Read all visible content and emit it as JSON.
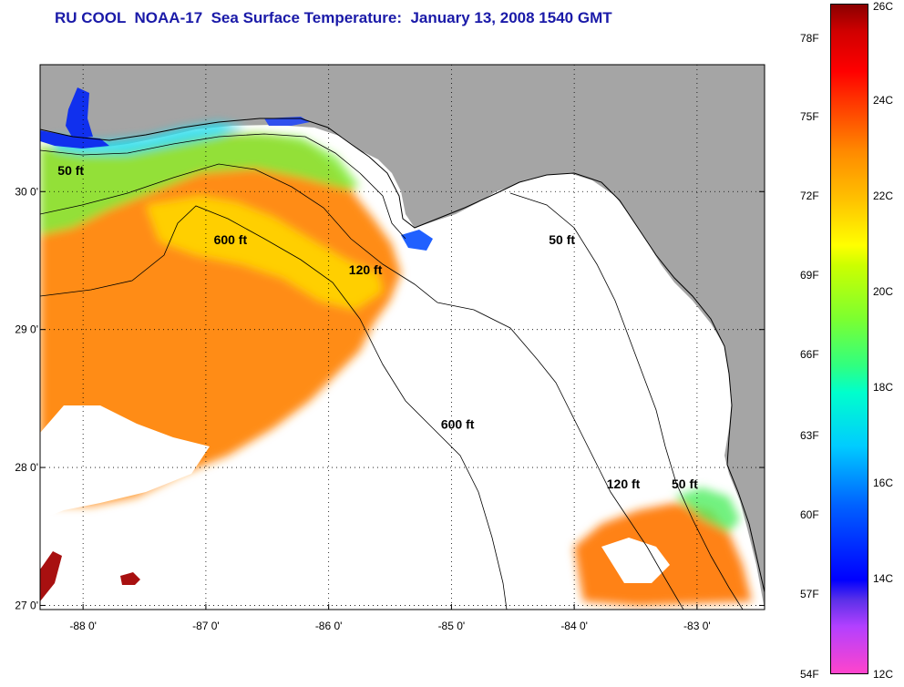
{
  "title": "RU COOL  NOAA-17  Sea Surface Temperature:  January 13, 2008 1540 GMT",
  "map": {
    "lon_range": [
      -88.35,
      -82.45
    ],
    "lat_range": [
      26.97,
      30.92
    ],
    "grid": "dotted",
    "lon_ticks": [
      {
        "value": -88,
        "label": "-88 0'"
      },
      {
        "value": -87,
        "label": "-87 0'"
      },
      {
        "value": -86,
        "label": "-86 0'"
      },
      {
        "value": -85,
        "label": "-85 0'"
      },
      {
        "value": -84,
        "label": "-84 0'"
      },
      {
        "value": -83,
        "label": "-83 0'"
      }
    ],
    "lat_ticks": [
      {
        "value": 30,
        "label": "30 0'"
      },
      {
        "value": 29,
        "label": "29 0'"
      },
      {
        "value": 28,
        "label": "28 0'"
      },
      {
        "value": 27,
        "label": "27 0'"
      }
    ],
    "contour_labels": [
      {
        "text": "50 ft",
        "lon": -88.1,
        "lat": 30.12
      },
      {
        "text": "600 ft",
        "lon": -86.8,
        "lat": 29.62
      },
      {
        "text": "120 ft",
        "lon": -85.7,
        "lat": 29.4
      },
      {
        "text": "50 ft",
        "lon": -84.1,
        "lat": 29.62
      },
      {
        "text": "600 ft",
        "lon": -84.95,
        "lat": 28.28
      },
      {
        "text": "120 ft",
        "lon": -83.6,
        "lat": 27.85
      },
      {
        "text": "50 ft",
        "lon": -83.1,
        "lat": 27.85
      }
    ],
    "colors": {
      "land": "#a5a5a5",
      "no_data": "#ffffff",
      "contour": "#000000"
    }
  },
  "colorbar": {
    "fahrenheit": [
      "78F",
      "75F",
      "72F",
      "69F",
      "66F",
      "63F",
      "60F",
      "57F",
      "54F"
    ],
    "celsius": [
      "26C",
      "24C",
      "22C",
      "20C",
      "18C",
      "16C",
      "14C",
      "12C"
    ]
  }
}
